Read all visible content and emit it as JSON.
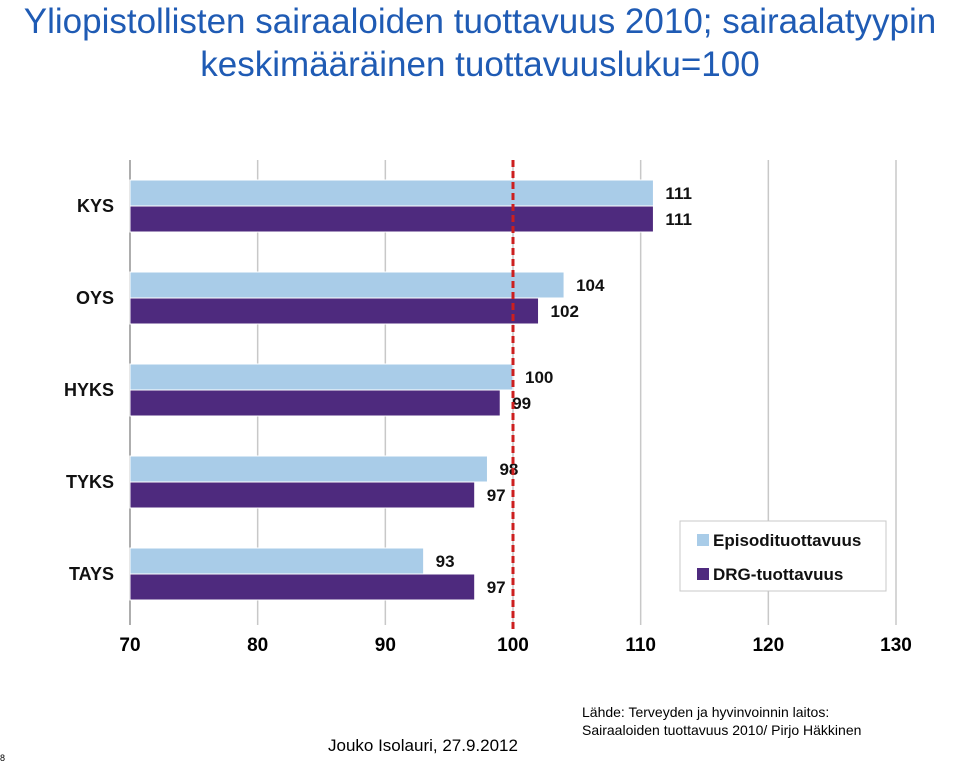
{
  "header": {
    "title_line1": "Yliopistollisten sairaaloiden tuottavuus 2010; sairaalatyypin",
    "title_line2": "keskimääräinen tuottavuusluku=100"
  },
  "chart_data": {
    "type": "bar",
    "orientation": "horizontal",
    "categories": [
      "KYS",
      "OYS",
      "HYKS",
      "TYKS",
      "TAYS"
    ],
    "series": [
      {
        "name": "Episodituottavuus",
        "values": [
          111,
          104,
          100,
          98,
          93
        ],
        "color": "#a9cce8"
      },
      {
        "name": "DRG-tuottavuus",
        "values": [
          111,
          102,
          99,
          97,
          97
        ],
        "color": "#4e2a7e"
      }
    ],
    "xlim": [
      70,
      130
    ],
    "xticks": [
      "70",
      "80",
      "90",
      "100",
      "110",
      "120",
      "130"
    ],
    "reference_line": {
      "value": 100,
      "color": "#cc1f1f"
    },
    "grid": true,
    "legend_position": "bottom-right",
    "title": "",
    "xlabel": "",
    "ylabel": ""
  },
  "footer": {
    "author": "Jouko Isolauri, 27.9.2012",
    "source_line1": "Lähde: Terveyden ja hyvinvoinnin laitos:",
    "source_line2": "Sairaaloiden tuottavuus 2010/  Pirjo Häkkinen",
    "page_number": "8"
  }
}
